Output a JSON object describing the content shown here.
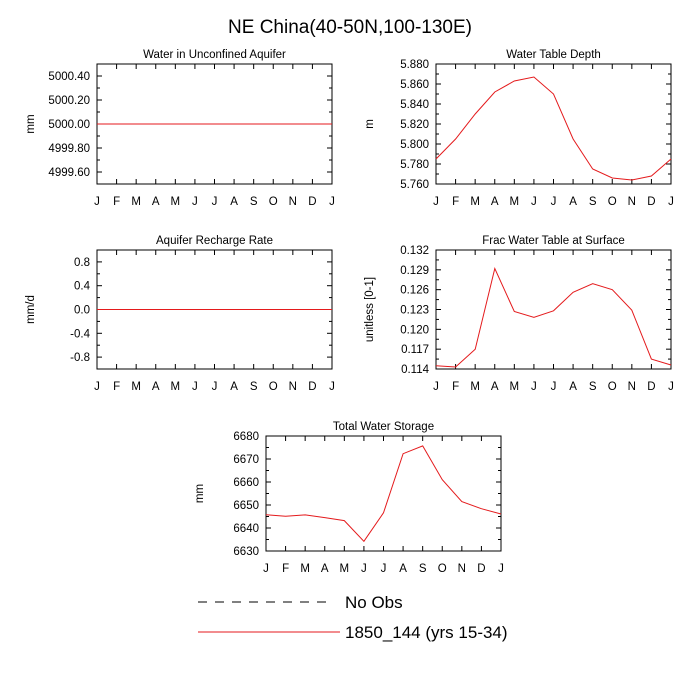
{
  "figure": {
    "title": "NE China(40-50N,100-130E)"
  },
  "legend": {
    "obs_label": "No Obs",
    "model_label": "1850_144 (yrs 15-34)",
    "obs_color": "#000000",
    "model_color": "#e41a1c"
  },
  "chart_data": [
    {
      "type": "line",
      "title": "Water in Unconfined Aquifer",
      "ylabel": "mm",
      "categories": [
        "J",
        "F",
        "M",
        "A",
        "M",
        "J",
        "J",
        "A",
        "S",
        "O",
        "N",
        "D",
        "J"
      ],
      "ylim": [
        4999.5,
        5000.5
      ],
      "yticks": [
        "5000.40",
        "5000.20",
        "5000.00",
        "4999.80",
        "4999.60"
      ],
      "series": [
        {
          "values": [
            5000,
            5000,
            5000,
            5000,
            5000,
            5000,
            5000,
            5000,
            5000,
            5000,
            5000,
            5000,
            5000
          ]
        }
      ]
    },
    {
      "type": "line",
      "title": "Water Table Depth",
      "ylabel": "m",
      "categories": [
        "J",
        "F",
        "M",
        "A",
        "M",
        "J",
        "J",
        "A",
        "S",
        "O",
        "N",
        "D",
        "J"
      ],
      "ylim": [
        5.76,
        5.88
      ],
      "yticks": [
        "5.880",
        "5.860",
        "5.840",
        "5.820",
        "5.800",
        "5.780",
        "5.760"
      ],
      "series": [
        {
          "values": [
            5.785,
            5.805,
            5.83,
            5.852,
            5.863,
            5.867,
            5.85,
            5.805,
            5.775,
            5.766,
            5.764,
            5.768,
            5.785
          ]
        }
      ]
    },
    {
      "type": "line",
      "title": "Aquifer Recharge Rate",
      "ylabel": "mm/d",
      "categories": [
        "J",
        "F",
        "M",
        "A",
        "M",
        "J",
        "J",
        "A",
        "S",
        "O",
        "N",
        "D",
        "J"
      ],
      "ylim": [
        -1.0,
        1.0
      ],
      "yticks": [
        "0.8",
        "0.4",
        "0.0",
        "-0.4",
        "-0.8"
      ],
      "series": [
        {
          "values": [
            0,
            0,
            0,
            0,
            0,
            0,
            0,
            0,
            0,
            0,
            0,
            0,
            0
          ]
        }
      ]
    },
    {
      "type": "line",
      "title": "Frac Water Table at Surface",
      "ylabel": "unitless [0-1]",
      "categories": [
        "J",
        "F",
        "M",
        "A",
        "M",
        "J",
        "J",
        "A",
        "S",
        "O",
        "N",
        "D",
        "J"
      ],
      "ylim": [
        0.114,
        0.132
      ],
      "yticks": [
        "0.132",
        "0.129",
        "0.126",
        "0.123",
        "0.120",
        "0.117",
        "0.114"
      ],
      "series": [
        {
          "values": [
            0.1145,
            0.1143,
            0.117,
            0.1292,
            0.1227,
            0.1218,
            0.1228,
            0.1256,
            0.1269,
            0.126,
            0.1229,
            0.1155,
            0.1146
          ]
        }
      ]
    },
    {
      "type": "line",
      "title": "Total Water Storage",
      "ylabel": "mm",
      "categories": [
        "J",
        "F",
        "M",
        "A",
        "M",
        "J",
        "J",
        "A",
        "S",
        "O",
        "N",
        "D",
        "J"
      ],
      "ylim": [
        6630,
        6680
      ],
      "yticks": [
        "6680",
        "6670",
        "6660",
        "6650",
        "6640",
        "6630"
      ],
      "series": [
        {
          "values": [
            6645.8,
            6645.1,
            6645.7,
            6644.5,
            6643.2,
            6634.2,
            6646.6,
            6672.3,
            6675.7,
            6661,
            6651.5,
            6648.4,
            6646.1
          ]
        }
      ]
    }
  ]
}
